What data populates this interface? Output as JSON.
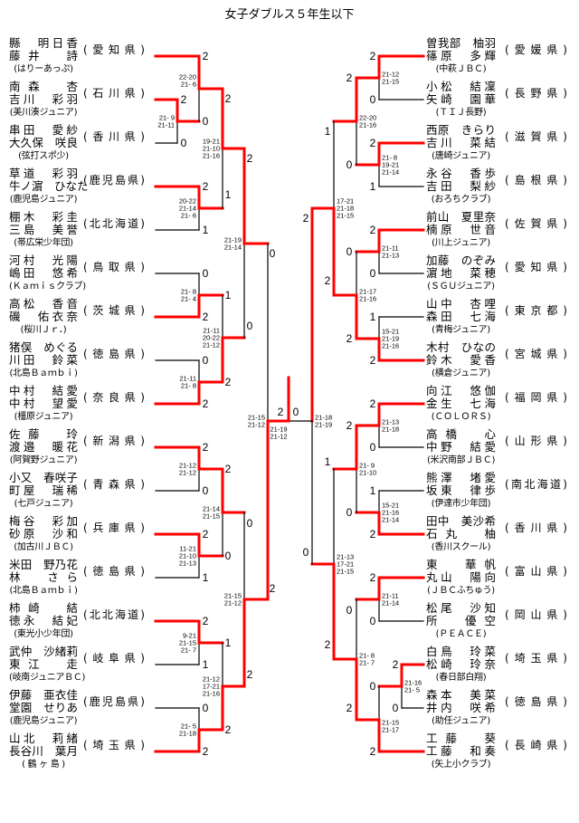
{
  "title": "女子ダブルス５年生以下",
  "colors": {
    "winner_line": "#ff0000",
    "line": "#000000"
  },
  "left": {
    "teams": [
      {
        "players": [
          "縣　明日香",
          "藤井　詩"
        ],
        "club": "(はりーあっぷ)",
        "pref": "(愛知県)"
      },
      {
        "players": [
          "南森　杏",
          "吉川　彩羽"
        ],
        "club": "(美川湊ジュニア)",
        "pref": "(石川県)"
      },
      {
        "players": [
          "串田　愛紗",
          "大久保　咲良"
        ],
        "club": "(弦打スポ少)",
        "pref": "(香川県)"
      },
      {
        "players": [
          "草道　彩羽",
          "牛ノ濵　ひなた"
        ],
        "club": "(鹿児島ジュニア)",
        "pref": "(鹿児島県)"
      },
      {
        "players": [
          "棚木　彩圭",
          "三島　美誉"
        ],
        "club": "(帯広栄少年団)",
        "pref": "(北北海道)"
      },
      {
        "players": [
          "河村　光陽",
          "嶋田　悠希"
        ],
        "club": "(Ｋａｍｉｓクラブ)",
        "pref": "(鳥取県)"
      },
      {
        "players": [
          "高松　香音",
          "磯　佑衣奈"
        ],
        "club": "(桜川Ｊｒ．)",
        "pref": "(茨城県)"
      },
      {
        "players": [
          "猪俣　めぐる",
          "川田　鈴菜"
        ],
        "club": "(北島Ｂａｍｂｉ)",
        "pref": "(徳島県)"
      },
      {
        "players": [
          "中村　結愛",
          "中村　望愛"
        ],
        "club": "(橿原ジュニア)",
        "pref": "(奈良県)"
      },
      {
        "players": [
          "佐藤　玲",
          "渡邉　暖花"
        ],
        "club": "(阿賀野ジュニア)",
        "pref": "(新潟県)"
      },
      {
        "players": [
          "小又　春咲子",
          "町屋　瑞稀"
        ],
        "club": "(七戸ジュニア)",
        "pref": "(青森県)"
      },
      {
        "players": [
          "梅谷　彩加",
          "砂原　沙和"
        ],
        "club": "(加古川ＪＢＣ)",
        "pref": "(兵庫県)"
      },
      {
        "players": [
          "米田　野乃花",
          "林　さら"
        ],
        "club": "(北島Ｂａｍｂｉ)",
        "pref": "(徳島県)"
      },
      {
        "players": [
          "柿崎　結",
          "徳永　結妃"
        ],
        "club": "(東光小少年団)",
        "pref": "(北北海道)"
      },
      {
        "players": [
          "武仲　沙緒莉",
          "東江　走"
        ],
        "club": "(岐南ジュニアＢＣ)",
        "pref": "(岐阜県)"
      },
      {
        "players": [
          "伊藤　亜衣佳",
          "堂園　せりあ"
        ],
        "club": "(鹿児島ジュニア)",
        "pref": "(鹿児島県)"
      },
      {
        "players": [
          "山北　莉緒",
          "長谷川　葉月"
        ],
        "club": "( 鶴 ヶ 島 )",
        "pref": "(埼玉県)"
      }
    ]
  },
  "right": {
    "teams": [
      {
        "players": [
          "曽我部　柚羽",
          "篠原　多輝"
        ],
        "club": "(中萩ＪＢＣ)",
        "pref": "(愛媛県)"
      },
      {
        "players": [
          "小松　結凜",
          "矢崎　園華"
        ],
        "club": "(ＴＩＪ長野)",
        "pref": "(長野県)"
      },
      {
        "players": [
          "西原　きらり",
          "吉川　菜結"
        ],
        "club": "(唐崎ジュニア)",
        "pref": "(滋賀県)"
      },
      {
        "players": [
          "永谷　香歩",
          "吉田　梨紗"
        ],
        "club": "(おろちクラブ)",
        "pref": "(島根県)"
      },
      {
        "players": [
          "前山　夏里奈",
          "楠原　世音"
        ],
        "club": "(川上ジュニア)",
        "pref": "(佐賀県)"
      },
      {
        "players": [
          "加藤　のぞみ",
          "濵地　菜穂"
        ],
        "club": "(ＳＧＵジュニア)",
        "pref": "(愛知県)"
      },
      {
        "players": [
          "山中　杏哩",
          "森田　七海"
        ],
        "club": "(青梅ジュニア)",
        "pref": "(東京都)"
      },
      {
        "players": [
          "木村　ひなの",
          "鈴木　愛香"
        ],
        "club": "(横倉ジュニア)",
        "pref": "(宮城県)"
      },
      {
        "players": [
          "向江　悠伽",
          "金生　七海"
        ],
        "club": "(ＣＯＬＯＲＳ)",
        "pref": "(福岡県)"
      },
      {
        "players": [
          "高橋　心",
          "中野　結愛"
        ],
        "club": "(米沢南部ＪＢＣ)",
        "pref": "(山形県)"
      },
      {
        "players": [
          "熊澤　堵愛",
          "坂東　律歩"
        ],
        "club": "(伊達市少年団)",
        "pref": "(南北海道)"
      },
      {
        "players": [
          "田中　美沙希",
          "石丸　柚"
        ],
        "club": "(香川スクール)",
        "pref": "(香川県)"
      },
      {
        "players": [
          "東　華帆",
          "丸山　陽向"
        ],
        "club": "(ＪＢＣふちゅう)",
        "pref": "(富山県)"
      },
      {
        "players": [
          "松尾　沙知",
          "所　優空"
        ],
        "club": "(ＰＥＡＣＥ)",
        "pref": "(岡山県)"
      },
      {
        "players": [
          "白鳥　玲菜",
          "松崎　玲奈"
        ],
        "club": "(春日部白翔)",
        "pref": "(埼玉県)"
      },
      {
        "players": [
          "森本　美菜",
          "井内　咲希"
        ],
        "club": "(助任ジュニア)",
        "pref": "(徳島県)"
      },
      {
        "players": [
          "工藤　葵",
          "工藤　和奏"
        ],
        "club": "(矢上小クラブ)",
        "pref": "(長崎県)"
      }
    ]
  },
  "matches": {
    "mA": {
      "scores": [
        "2",
        "0"
      ],
      "games": [
        "21- 9",
        "21-11"
      ]
    },
    "mB": {
      "scores": [
        "2",
        "0"
      ],
      "games": [
        "22-20",
        "21- 6"
      ]
    },
    "mC": {
      "scores": [
        "2",
        "1"
      ],
      "games": [
        "20-22",
        "21-14",
        "21- 6"
      ]
    },
    "mD": {
      "scores": [
        "2",
        "1"
      ],
      "games": [
        "19-21",
        "21-10",
        "21-16"
      ]
    },
    "mE": {
      "scores": [
        "0",
        "2"
      ],
      "games": [
        "21- 8",
        "21- 4"
      ]
    },
    "mF": {
      "scores": [
        "0",
        "2"
      ],
      "games": [
        "21-11",
        "21- 8"
      ]
    },
    "mG": {
      "scores": [
        "1",
        "2"
      ],
      "games": [
        "21-11",
        "20-22",
        "21-12"
      ]
    },
    "mH": {
      "scores": [
        "2",
        "0"
      ],
      "games": [
        "21-19",
        "21-14"
      ]
    },
    "mI": {
      "scores": [
        "2",
        "0"
      ],
      "games": [
        "21-12",
        "21-12"
      ]
    },
    "mJ": {
      "scores": [
        "2",
        "1"
      ],
      "games": [
        "11-21",
        "21-10",
        "21-13"
      ]
    },
    "mK": {
      "scores": [
        "2",
        "0"
      ],
      "games": [
        "21-14",
        "21-15"
      ]
    },
    "mL": {
      "scores": [
        "2",
        "1"
      ],
      "games": [
        "9-21",
        "21-15",
        "21- 7"
      ]
    },
    "mM": {
      "scores": [
        "0",
        "2"
      ],
      "games": [
        "21- 5",
        "21-18"
      ]
    },
    "mN": {
      "scores": [
        "1",
        "2"
      ],
      "games": [
        "21-12",
        "17-21",
        "21-16"
      ]
    },
    "mO": {
      "scores": [
        "0",
        "2"
      ],
      "games": [
        "21-15",
        "21-12"
      ]
    },
    "mP": {
      "scores": [
        "0",
        "2"
      ],
      "games": [
        "21-15",
        "21-12"
      ]
    },
    "final": {
      "scores": [
        "2",
        "0"
      ],
      "games": [
        "21-19",
        "21-12"
      ]
    },
    "ra": {
      "scores": [
        "2",
        "0"
      ],
      "games": [
        "21-12",
        "21-15"
      ]
    },
    "rb": {
      "scores": [
        "2",
        "1"
      ],
      "games": [
        "21- 8",
        "19-21",
        "21-14"
      ]
    },
    "rc": {
      "scores": [
        "2",
        "0"
      ],
      "games": [
        "22-20",
        "21-16"
      ]
    },
    "rd": {
      "scores": [
        "2",
        "0"
      ],
      "games": [
        "21-11",
        "21-13"
      ]
    },
    "re": {
      "scores": [
        "1",
        "2"
      ],
      "games": [
        "15-21",
        "21-19",
        "21-16"
      ]
    },
    "rf": {
      "scores": [
        "0",
        "2"
      ],
      "games": [
        "21-17",
        "21-16"
      ]
    },
    "rg": {
      "scores": [
        "1",
        "2"
      ],
      "games": [
        "17-21",
        "21-18",
        "21-15"
      ]
    },
    "rh": {
      "scores": [
        "2",
        "0"
      ],
      "games": [
        "21-13",
        "21-18"
      ]
    },
    "ri": {
      "scores": [
        "1",
        "2"
      ],
      "games": [
        "15-21",
        "21-16",
        "21-14"
      ]
    },
    "rj": {
      "scores": [
        "2",
        "0"
      ],
      "games": [
        "21- 9",
        "21-10"
      ]
    },
    "rk": {
      "scores": [
        "2",
        "0"
      ],
      "games": [
        "21-11",
        "21-14"
      ]
    },
    "rl": {
      "scores": [
        "2",
        "0"
      ],
      "games": [
        "21-16",
        "21- 5"
      ]
    },
    "rm": {
      "scores": [
        "0",
        "2"
      ],
      "games": [
        "21-15",
        "21-17"
      ]
    },
    "rn": {
      "scores": [
        "0",
        "2"
      ],
      "games": [
        "21- 8",
        "21- 7"
      ]
    },
    "ro": {
      "scores": [
        "1",
        "2"
      ],
      "games": [
        "21-13",
        "17-21",
        "21-15"
      ]
    },
    "rQ": {
      "scores": [
        "2",
        "0"
      ],
      "games": [
        "21-18",
        "21-19"
      ]
    }
  }
}
